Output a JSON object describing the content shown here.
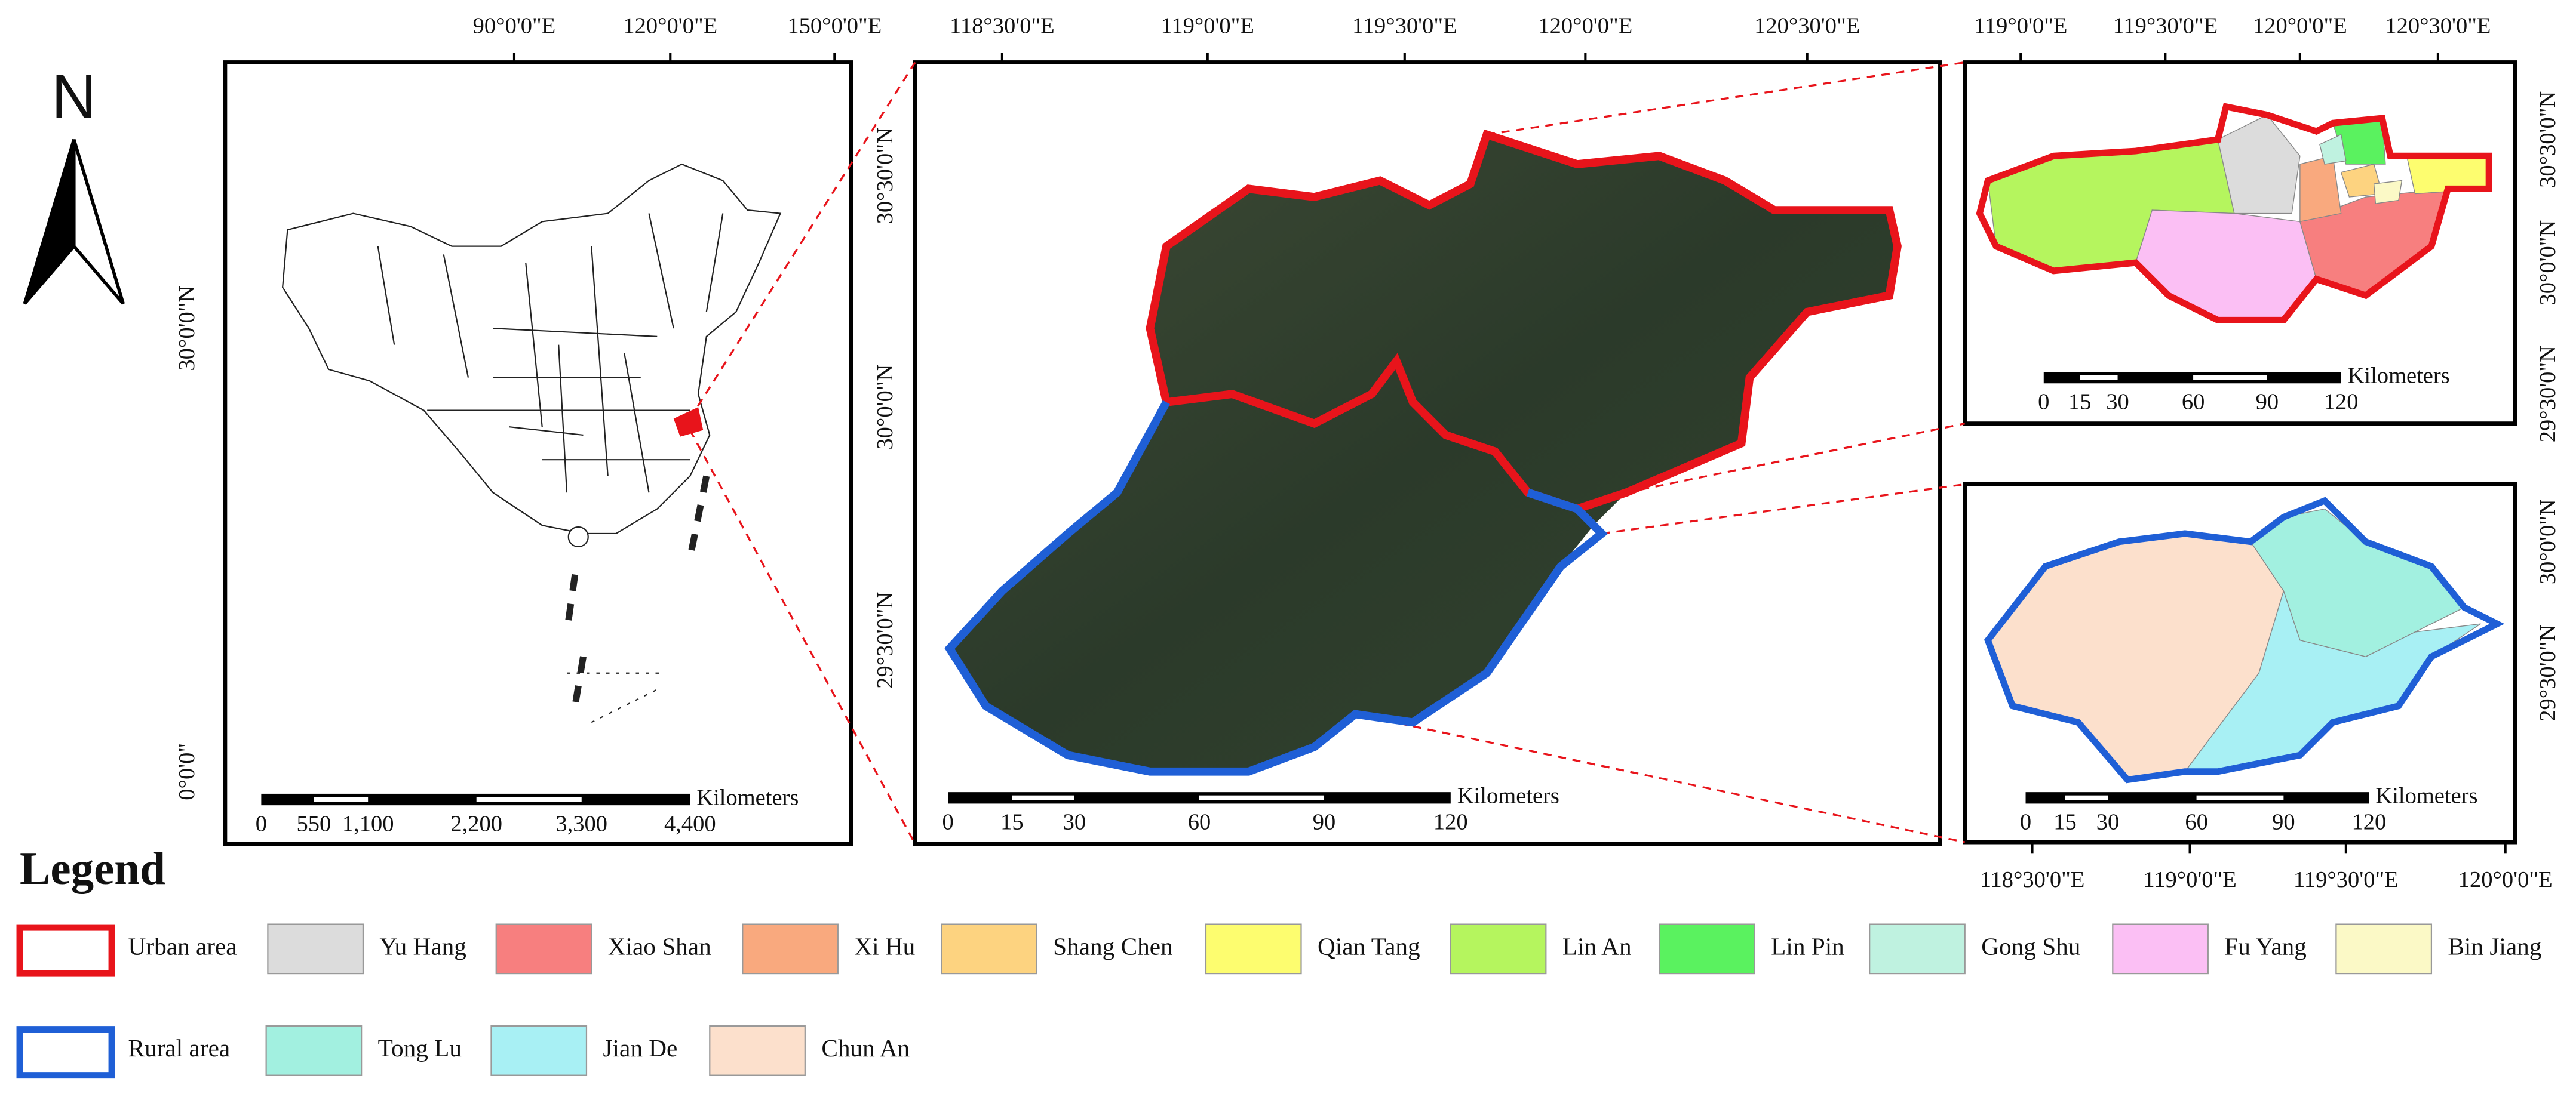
{
  "north_arrow": "N",
  "panels": [
    {
      "top_labels": [
        "90°0'0\"E",
        "120°0'0\"E",
        "150°0'0\"E"
      ],
      "left_labels": [
        "30°0'0\"N",
        "0°0'0\""
      ],
      "scale_bar": {
        "unit": "Kilometers",
        "labels": [
          "0",
          "550",
          "1,100",
          "2,200",
          "3,300",
          "4,400"
        ]
      }
    },
    {
      "top_labels": [
        "118°30'0\"E",
        "119°0'0\"E",
        "119°30'0\"E",
        "120°0'0\"E",
        "120°30'0\"E"
      ],
      "left_labels": [
        "30°30'0\"N",
        "30°0'0\"N",
        "29°30'0\"N"
      ],
      "scale_bar": {
        "unit": "Kilometers",
        "labels": [
          "0",
          "15",
          "30",
          "60",
          "90",
          "120"
        ]
      }
    },
    {
      "top_labels": [
        "119°0'0\"E",
        "119°30'0\"E",
        "120°0'0\"E",
        "120°30'0\"E"
      ],
      "right_labels": [
        "30°30'0\"N",
        "30°0'0\"N",
        "29°30'0\"N"
      ],
      "scale_bar": {
        "unit": "Kilometers",
        "labels": [
          "0",
          "15",
          "30",
          "60",
          "90",
          "120"
        ]
      }
    },
    {
      "bottom_labels": [
        "118°30'0\"E",
        "119°0'0\"E",
        "119°30'0\"E",
        "120°0'0\"E"
      ],
      "right_labels": [
        "30°0'0\"N",
        "29°30'0\"N"
      ],
      "scale_bar": {
        "unit": "Kilometers",
        "labels": [
          "0",
          "15",
          "30",
          "60",
          "90",
          "120"
        ]
      }
    }
  ],
  "legend": {
    "title": "Legend",
    "rows": [
      [
        {
          "label": "Urban area",
          "color": "#e8141b",
          "swatch": "outline"
        },
        {
          "label": "Yu Hang",
          "color": "#dcdcdc",
          "swatch": "fill"
        },
        {
          "label": "Xiao Shan",
          "color": "#f77f7f",
          "swatch": "fill"
        },
        {
          "label": "Xi Hu",
          "color": "#f9a97e",
          "swatch": "fill"
        },
        {
          "label": "Shang Chen",
          "color": "#fdd380",
          "swatch": "fill"
        },
        {
          "label": "Qian Tang",
          "color": "#fdfd6f",
          "swatch": "fill"
        },
        {
          "label": "Lin An",
          "color": "#b5f55e",
          "swatch": "fill"
        },
        {
          "label": "Lin Pin",
          "color": "#5af25f",
          "swatch": "fill"
        },
        {
          "label": "Gong Shu",
          "color": "#bff2e0",
          "swatch": "fill"
        },
        {
          "label": "Fu Yang",
          "color": "#fbbff4",
          "swatch": "fill"
        },
        {
          "label": "Bin Jiang",
          "color": "#fbf9c6",
          "swatch": "fill"
        }
      ],
      [
        {
          "label": "Rural area",
          "color": "#1f5fd6",
          "swatch": "outline"
        },
        {
          "label": "Tong Lu",
          "color": "#a2f0e0",
          "swatch": "fill"
        },
        {
          "label": "Jian De",
          "color": "#a8f0f4",
          "swatch": "fill"
        },
        {
          "label": "Chun An",
          "color": "#fce0cc",
          "swatch": "fill"
        }
      ]
    ]
  }
}
